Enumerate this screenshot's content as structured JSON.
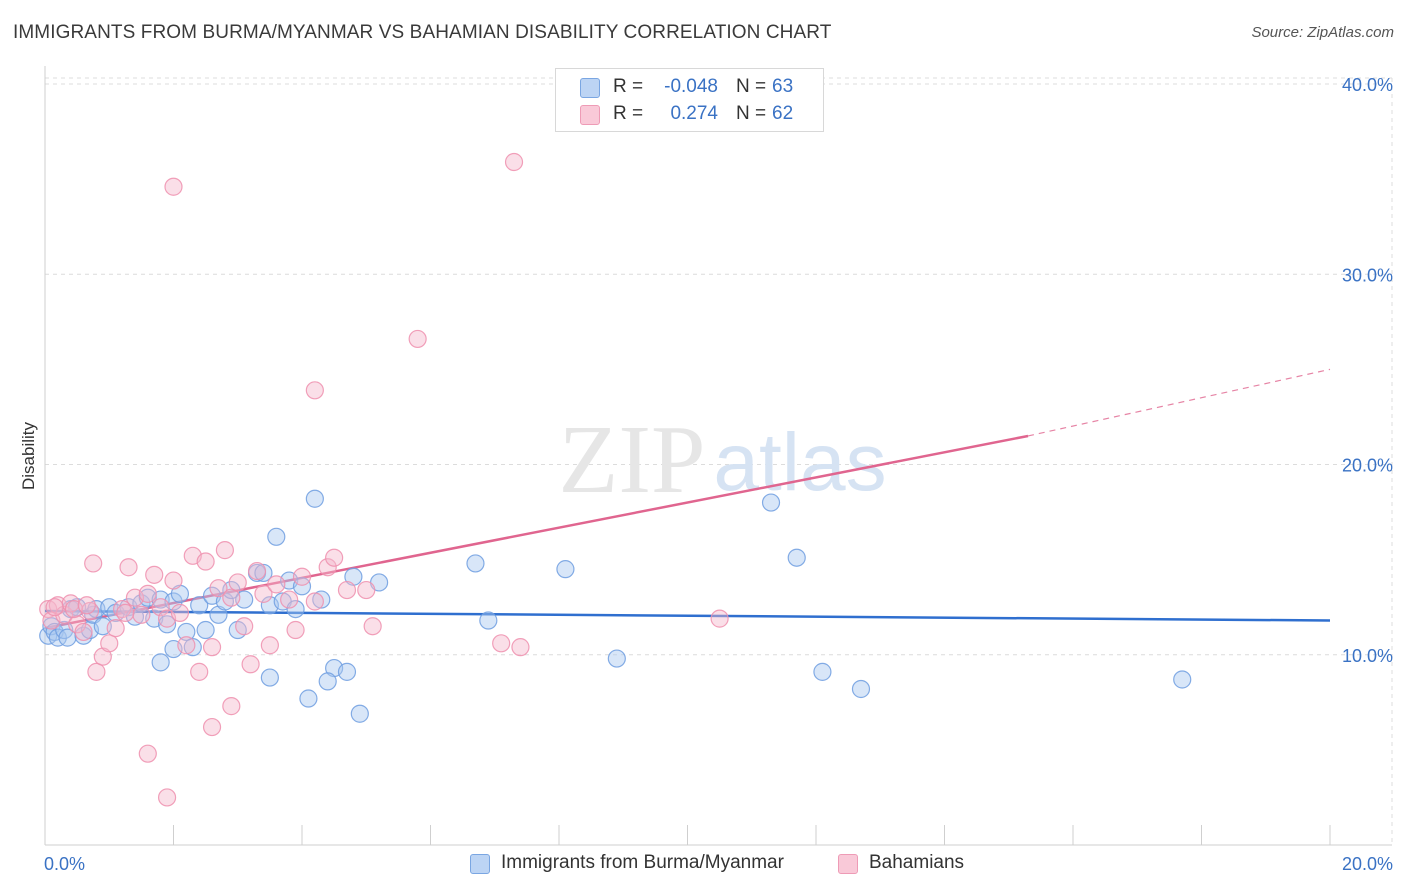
{
  "header": {
    "title": "IMMIGRANTS FROM BURMA/MYANMAR VS BAHAMIAN DISABILITY CORRELATION CHART",
    "source": "Source: ZipAtlas.com"
  },
  "legend": {
    "rows": [
      {
        "r_label": "R =",
        "r_value": "-0.048",
        "n_label": "N =",
        "n_value": "63"
      },
      {
        "r_label": "R =",
        "r_value": "0.274",
        "n_label": "N =",
        "n_value": "62"
      }
    ]
  },
  "bottom_legend": {
    "items": [
      "Immigrants from Burma/Myanmar",
      "Bahamians"
    ]
  },
  "watermark": {
    "zip": "ZIP",
    "atlas": "atlas"
  },
  "colors": {
    "blue_fill": "#a9c8f0",
    "blue_stroke": "#6f9ee0",
    "blue_line": "#2f6fcf",
    "pink_fill": "#f5b8cb",
    "pink_stroke": "#ee8fae",
    "pink_line": "#e0658f",
    "axis_text": "#3a72c4",
    "grid": "#dcdcdc"
  },
  "chart_data": {
    "type": "scatter",
    "title": "IMMIGRANTS FROM BURMA/MYANMAR VS BAHAMIAN DISABILITY CORRELATION CHART",
    "xlabel": "",
    "ylabel": "Disability",
    "xlim": [
      0,
      20
    ],
    "ylim": [
      0,
      40
    ],
    "x_tick_labels": [
      "0.0%",
      "20.0%"
    ],
    "y_ticks": [
      10,
      20,
      30,
      40
    ],
    "y_tick_labels": [
      "10.0%",
      "20.0%",
      "30.0%",
      "40.0%"
    ],
    "grid": true,
    "series": [
      {
        "name": "Immigrants from Burma/Myanmar",
        "color": "#a9c8f0",
        "trend": {
          "x0": 0,
          "y0": 12.3,
          "x1": 20,
          "y1": 11.8
        },
        "points": [
          [
            0.05,
            11.0
          ],
          [
            0.1,
            11.5
          ],
          [
            0.15,
            11.2
          ],
          [
            0.2,
            10.9
          ],
          [
            0.3,
            11.3
          ],
          [
            0.35,
            10.9
          ],
          [
            0.4,
            12.4
          ],
          [
            0.5,
            12.5
          ],
          [
            0.6,
            11.0
          ],
          [
            0.7,
            11.3
          ],
          [
            0.75,
            12.1
          ],
          [
            0.8,
            12.4
          ],
          [
            0.9,
            11.5
          ],
          [
            1.0,
            12.5
          ],
          [
            1.1,
            12.2
          ],
          [
            1.3,
            12.5
          ],
          [
            1.4,
            12.0
          ],
          [
            1.5,
            12.7
          ],
          [
            1.6,
            13.0
          ],
          [
            1.7,
            11.9
          ],
          [
            1.8,
            12.9
          ],
          [
            1.9,
            11.6
          ],
          [
            2.0,
            12.8
          ],
          [
            2.1,
            13.2
          ],
          [
            2.2,
            11.2
          ],
          [
            2.3,
            10.4
          ],
          [
            2.4,
            12.6
          ],
          [
            2.5,
            11.3
          ],
          [
            2.6,
            13.1
          ],
          [
            2.7,
            12.1
          ],
          [
            2.8,
            12.8
          ],
          [
            2.9,
            13.4
          ],
          [
            3.0,
            11.3
          ],
          [
            3.1,
            12.9
          ],
          [
            3.3,
            14.3
          ],
          [
            3.4,
            14.3
          ],
          [
            3.5,
            12.6
          ],
          [
            3.6,
            16.2
          ],
          [
            3.7,
            12.8
          ],
          [
            3.8,
            13.9
          ],
          [
            3.9,
            12.4
          ],
          [
            4.0,
            13.6
          ],
          [
            4.2,
            18.2
          ],
          [
            4.3,
            12.9
          ],
          [
            4.5,
            9.3
          ],
          [
            4.7,
            9.1
          ],
          [
            4.8,
            14.1
          ],
          [
            5.2,
            13.8
          ],
          [
            1.8,
            9.6
          ],
          [
            2.0,
            10.3
          ],
          [
            3.5,
            8.8
          ],
          [
            4.4,
            8.6
          ],
          [
            4.1,
            7.7
          ],
          [
            4.9,
            6.9
          ],
          [
            6.7,
            14.8
          ],
          [
            6.9,
            11.8
          ],
          [
            8.1,
            14.5
          ],
          [
            8.9,
            9.8
          ],
          [
            11.3,
            18.0
          ],
          [
            11.7,
            15.1
          ],
          [
            12.1,
            9.1
          ],
          [
            12.7,
            8.2
          ],
          [
            17.7,
            8.7
          ]
        ]
      },
      {
        "name": "Bahamians",
        "color": "#f5b8cb",
        "trend": {
          "x0": 0,
          "y0": 11.4,
          "x1": 15.3,
          "y1": 21.5,
          "x_dash_end": 20,
          "y_dash_end": 25.0
        },
        "points": [
          [
            0.05,
            12.4
          ],
          [
            0.1,
            11.8
          ],
          [
            0.2,
            12.6
          ],
          [
            0.3,
            12.1
          ],
          [
            0.4,
            12.7
          ],
          [
            0.5,
            11.6
          ],
          [
            0.6,
            11.2
          ],
          [
            0.7,
            12.3
          ],
          [
            0.75,
            14.8
          ],
          [
            0.8,
            9.1
          ],
          [
            0.9,
            9.9
          ],
          [
            1.0,
            10.6
          ],
          [
            1.1,
            11.4
          ],
          [
            1.2,
            12.4
          ],
          [
            1.3,
            14.6
          ],
          [
            1.4,
            13.0
          ],
          [
            1.5,
            12.1
          ],
          [
            1.6,
            13.2
          ],
          [
            1.7,
            14.2
          ],
          [
            1.8,
            12.5
          ],
          [
            1.9,
            11.9
          ],
          [
            2.0,
            13.9
          ],
          [
            2.1,
            12.2
          ],
          [
            2.2,
            10.5
          ],
          [
            2.3,
            15.2
          ],
          [
            2.4,
            9.1
          ],
          [
            2.5,
            14.9
          ],
          [
            2.6,
            10.4
          ],
          [
            2.7,
            13.5
          ],
          [
            2.8,
            15.5
          ],
          [
            2.9,
            13.0
          ],
          [
            3.0,
            13.8
          ],
          [
            3.1,
            11.5
          ],
          [
            3.2,
            9.5
          ],
          [
            3.3,
            14.4
          ],
          [
            3.4,
            13.2
          ],
          [
            3.5,
            10.5
          ],
          [
            3.6,
            13.7
          ],
          [
            3.8,
            12.9
          ],
          [
            3.9,
            11.3
          ],
          [
            4.0,
            14.1
          ],
          [
            4.2,
            12.8
          ],
          [
            4.4,
            14.6
          ],
          [
            4.5,
            15.1
          ],
          [
            4.7,
            13.4
          ],
          [
            5.0,
            13.4
          ],
          [
            5.1,
            11.5
          ],
          [
            1.6,
            4.8
          ],
          [
            1.9,
            2.5
          ],
          [
            2.6,
            6.2
          ],
          [
            2.9,
            7.3
          ],
          [
            2.0,
            34.6
          ],
          [
            4.2,
            23.9
          ],
          [
            5.8,
            26.6
          ],
          [
            7.3,
            35.9
          ],
          [
            7.1,
            10.6
          ],
          [
            7.4,
            10.4
          ],
          [
            10.5,
            11.9
          ],
          [
            0.15,
            12.5
          ],
          [
            0.45,
            12.4
          ],
          [
            0.65,
            12.6
          ],
          [
            1.25,
            12.2
          ]
        ]
      }
    ]
  }
}
